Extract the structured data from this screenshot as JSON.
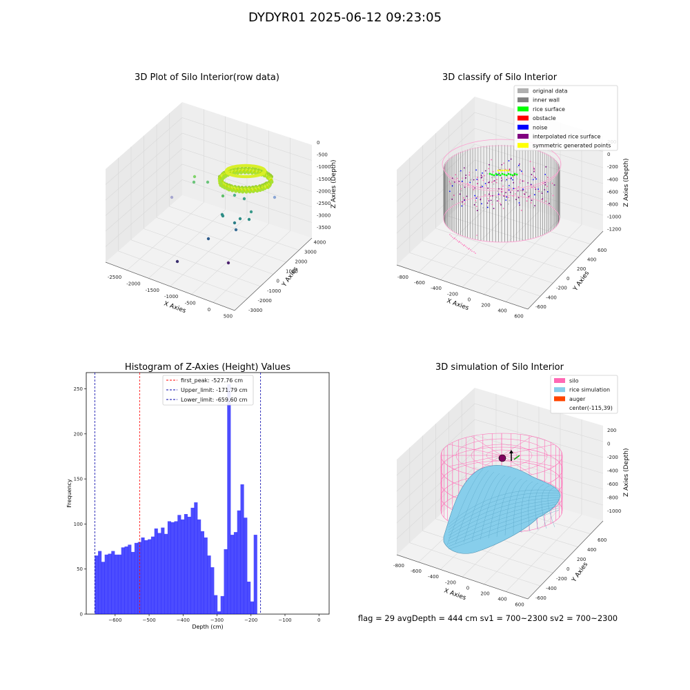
{
  "figure": {
    "title": "DYDYR01 2025-06-12 09:23:05",
    "footer": "flag = 29  avgDepth = 444 cm  sv1 = 700~2300  sv2 = 700~2300"
  },
  "panels": {
    "raw": {
      "title": "3D Plot of Silo Interior(row data)",
      "xlabel": "X Axies",
      "ylabel": "Y Axies",
      "zlabel": "Z Axies (Depth)",
      "xticks": [
        "-2500",
        "-2000",
        "-1500",
        "-1000",
        "-500",
        "0",
        "500"
      ],
      "yticks": [
        "-3000",
        "-2000",
        "-1000",
        "0",
        "1000",
        "2000",
        "3000",
        "4000"
      ],
      "zticks": [
        "0",
        "-500",
        "-1000",
        "-1500",
        "-2000",
        "-2500",
        "-3000",
        "-3500"
      ]
    },
    "classify": {
      "title": "3D classify of Silo Interior",
      "xlabel": "X Axies",
      "ylabel": "Y Axies",
      "zlabel": "Z Axies (Depth)",
      "xticks": [
        "-800",
        "-600",
        "-400",
        "-200",
        "0",
        "200",
        "400",
        "600"
      ],
      "yticks": [
        "-600",
        "-400",
        "-200",
        "0",
        "200",
        "400",
        "600"
      ],
      "zticks": [
        "200",
        "0",
        "-200",
        "-400",
        "-600",
        "-800",
        "-1000",
        "-1200"
      ],
      "legend": [
        {
          "label": "original data",
          "color": "#b0b0b0"
        },
        {
          "label": "inner wall",
          "color": "#808080"
        },
        {
          "label": "rice surface",
          "color": "#00ff00"
        },
        {
          "label": "obstacle",
          "color": "#ff0000"
        },
        {
          "label": "noise",
          "color": "#0000ff"
        },
        {
          "label": "interpolated rice surface",
          "color": "#800080"
        },
        {
          "label": "symmetric generated points",
          "color": "#ffff00"
        }
      ]
    },
    "simulation": {
      "title": "3D simulation of Silo Interior",
      "xlabel": "X Axies",
      "ylabel": "Y Axies",
      "zlabel": "Z Axies (Depth)",
      "xticks": [
        "-800",
        "-600",
        "-400",
        "-200",
        "0",
        "200",
        "400",
        "600"
      ],
      "yticks": [
        "-600",
        "-400",
        "-200",
        "0",
        "200",
        "400",
        "600"
      ],
      "zticks": [
        "200",
        "0",
        "-200",
        "-400",
        "-600",
        "-800",
        "-1000"
      ],
      "legend": [
        {
          "label": "silo",
          "color": "#ff69b4"
        },
        {
          "label": "rice simulation",
          "color": "#87ceeb"
        },
        {
          "label": "auger",
          "color": "#ff4500"
        },
        {
          "label": "center(-115,39)",
          "color": ""
        }
      ]
    }
  },
  "chart_data": {
    "type": "bar",
    "title": "Histogram of Z-Axies (Height) Values",
    "xlabel": "Depth (cm)",
    "ylabel": "Frequency",
    "xlim": [
      -685,
      30
    ],
    "ylim": [
      0,
      268
    ],
    "xticks": [
      -600,
      -500,
      -400,
      -300,
      -200,
      -100,
      0
    ],
    "yticks": [
      0,
      50,
      100,
      150,
      200,
      250
    ],
    "bin_width": 9.75,
    "bin_start": -660,
    "values": [
      65,
      70,
      58,
      66,
      67,
      70,
      66,
      66,
      74,
      75,
      77,
      69,
      79,
      80,
      85,
      82,
      83,
      86,
      95,
      90,
      96,
      89,
      103,
      102,
      103,
      110,
      105,
      111,
      108,
      118,
      124,
      105,
      92,
      85,
      65,
      52,
      21,
      3,
      20,
      72,
      255,
      88,
      91,
      115,
      144,
      107,
      36,
      14,
      88
    ],
    "color": "#0000ff",
    "vlines": [
      {
        "label": "first_peak: -527.76 cm",
        "x": -527.76,
        "color": "#ff0000"
      },
      {
        "label": "Upper_limit: -171.79 cm",
        "x": -171.79,
        "color": "#0000aa"
      },
      {
        "label": "Lower_limit: -659.60 cm",
        "x": -659.6,
        "color": "#0000aa"
      }
    ]
  }
}
